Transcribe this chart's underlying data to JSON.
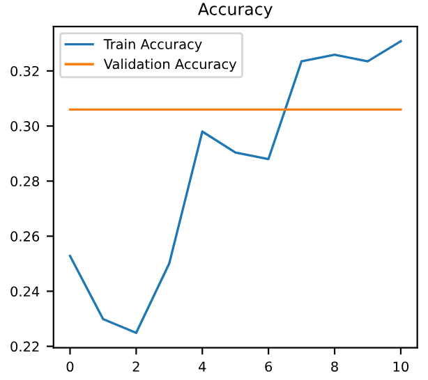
{
  "chart_data": {
    "type": "line",
    "title": "Accuracy",
    "x": [
      0,
      1,
      2,
      3,
      4,
      5,
      6,
      7,
      8,
      9,
      10
    ],
    "series": [
      {
        "name": "Train Accuracy",
        "color": "#1f77b4",
        "values": [
          0.2528,
          0.2299,
          0.2249,
          0.2501,
          0.298,
          0.2904,
          0.288,
          0.3235,
          0.3259,
          0.3235,
          0.3308
        ]
      },
      {
        "name": "Validation Accuracy",
        "color": "#ff7f0e",
        "values": [
          0.306,
          0.306,
          0.306,
          0.306,
          0.306,
          0.306,
          0.306,
          0.306,
          0.306,
          0.306,
          0.306
        ]
      }
    ],
    "xlim": [
      -0.5,
      10.5
    ],
    "xticks": [
      0,
      2,
      4,
      6,
      8,
      10
    ],
    "ylim": [
      0.2195,
      0.3361
    ],
    "yticks": [
      0.22,
      0.24,
      0.26,
      0.28,
      {
        "value": 0.3,
        "label": "0.30"
      },
      0.32
    ],
    "legend": "top left",
    "grid": false
  }
}
